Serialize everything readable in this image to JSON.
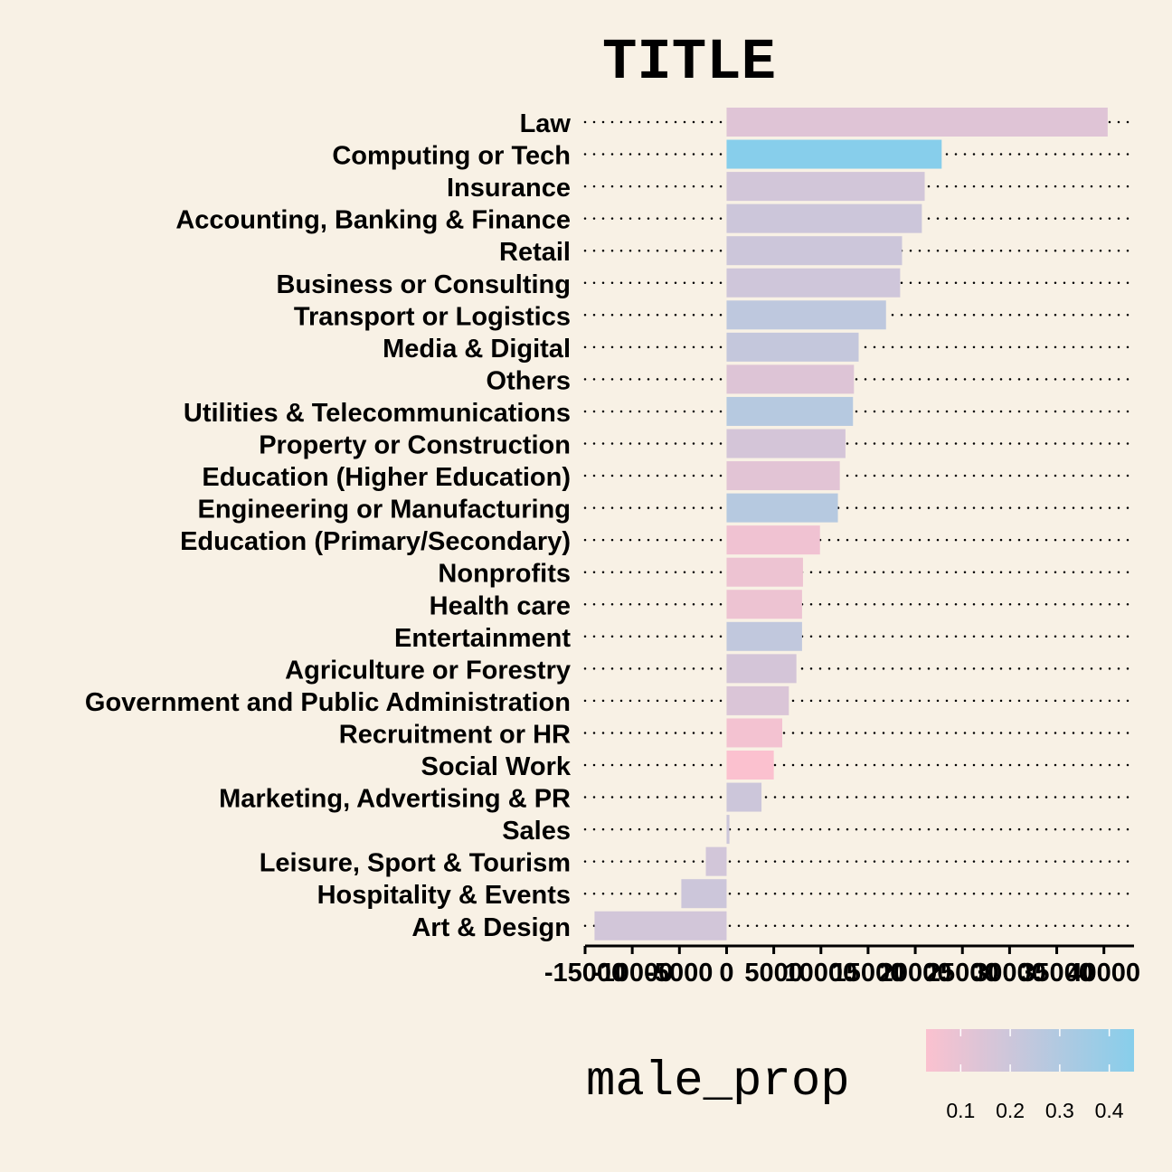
{
  "chart_data": {
    "type": "bar",
    "orientation": "horizontal",
    "title": "TITLE",
    "xlabel": "",
    "ylabel": "",
    "xlim": [
      -15000,
      43000
    ],
    "xticks": [
      -15000,
      -10000,
      -5000,
      0,
      5000,
      10000,
      15000,
      20000,
      25000,
      30000,
      35000,
      40000
    ],
    "grid": "dotted horizontal guides",
    "legend": {
      "title": "male_prop",
      "placement": "bottom-right",
      "range": [
        0.03,
        0.45
      ],
      "ticks": [
        0.1,
        0.2,
        0.3,
        0.4
      ],
      "low_color": "#fbc1cf",
      "high_color": "#87ceeb"
    },
    "categories": [
      "Law",
      "Computing or Tech",
      "Insurance",
      "Accounting, Banking & Finance",
      "Retail",
      "Business or Consulting",
      "Transport or Logistics",
      "Media & Digital",
      "Others",
      "Utilities & Telecommunications",
      "Property or Construction",
      "Education (Higher Education)",
      "Engineering or Manufacturing",
      "Education (Primary/Secondary)",
      "Nonprofits",
      "Health care",
      "Entertainment",
      "Agriculture or Forestry",
      "Government and Public Administration",
      "Recruitment or HR",
      "Social Work",
      "Marketing, Advertising & PR",
      "Sales",
      "Leisure, Sport & Tourism",
      "Hospitality & Events",
      "Art & Design"
    ],
    "series": [
      {
        "values": [
          40400,
          22800,
          21000,
          20700,
          18600,
          18400,
          16900,
          14000,
          13500,
          13400,
          12600,
          12000,
          11800,
          9900,
          8100,
          8000,
          8000,
          7400,
          6600,
          5900,
          5000,
          3700,
          300,
          -2200,
          -4800,
          -14000
        ],
        "male_prop": [
          0.13,
          0.45,
          0.18,
          0.2,
          0.2,
          0.19,
          0.25,
          0.23,
          0.14,
          0.28,
          0.17,
          0.12,
          0.28,
          0.07,
          0.08,
          0.08,
          0.24,
          0.17,
          0.15,
          0.06,
          0.03,
          0.2,
          0.2,
          0.18,
          0.2,
          0.18
        ]
      }
    ]
  }
}
